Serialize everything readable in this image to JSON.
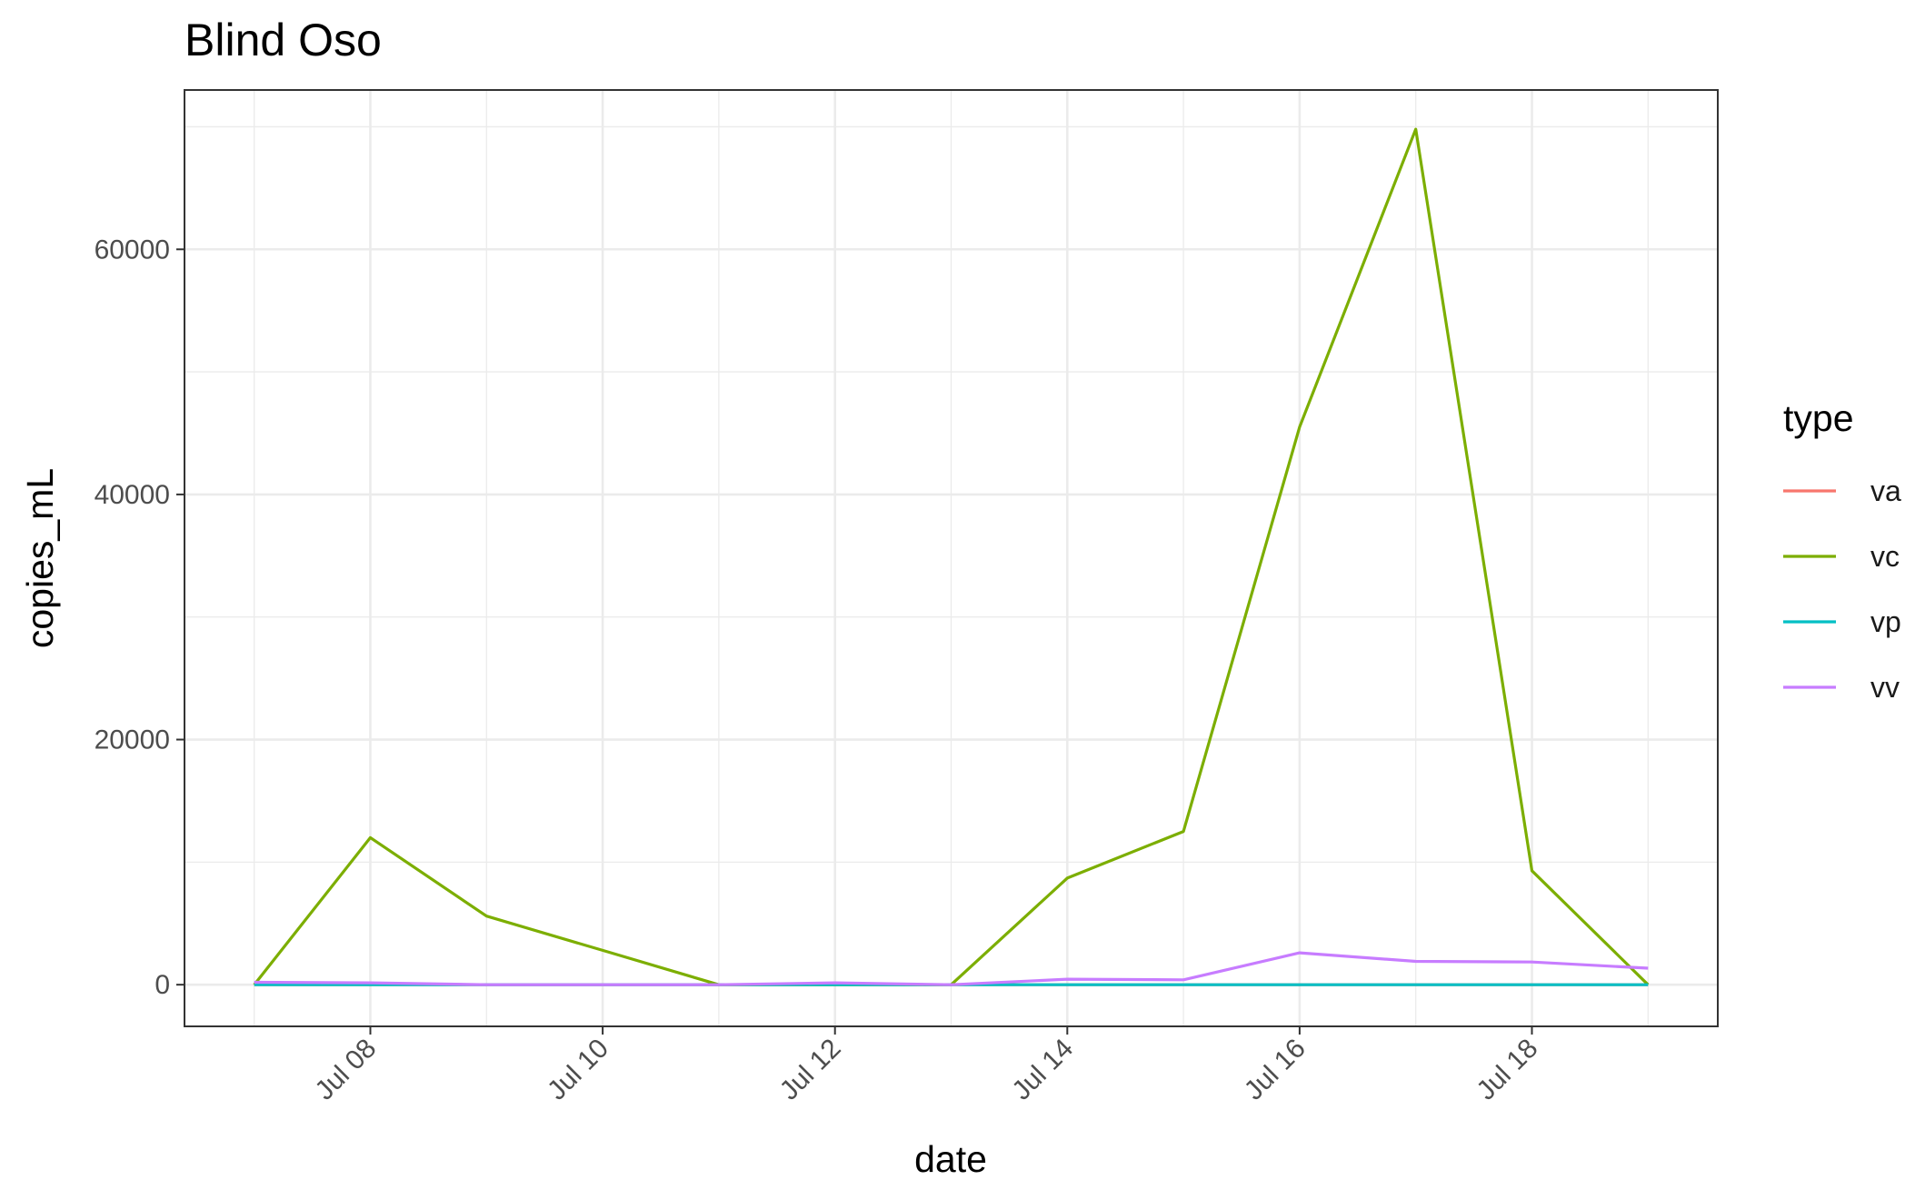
{
  "chart_data": {
    "type": "line",
    "title": "Blind Oso",
    "xlabel": "date",
    "ylabel": "copies_mL",
    "x": [
      "2023-07-07",
      "2023-07-08",
      "2023-07-09",
      "2023-07-10",
      "2023-07-11",
      "2023-07-12",
      "2023-07-13",
      "2023-07-14",
      "2023-07-15",
      "2023-07-16",
      "2023-07-17",
      "2023-07-18",
      "2023-07-19"
    ],
    "x_ticks": [
      "Jul 08",
      "Jul 10",
      "Jul 12",
      "Jul 14",
      "Jul 16",
      "Jul 18"
    ],
    "y_ticks": [
      "0",
      "20000",
      "40000",
      "60000"
    ],
    "ylim": [
      -3400,
      73000
    ],
    "grid": true,
    "legend": {
      "title": "type",
      "position": "right"
    },
    "series": [
      {
        "name": "va",
        "color": "#F8766D",
        "values": [
          0,
          0,
          0,
          0,
          0,
          0,
          0,
          0,
          0,
          0,
          0,
          0,
          0
        ]
      },
      {
        "name": "vc",
        "color": "#7CAE00",
        "values": [
          0,
          12000,
          5600,
          2800,
          0,
          0,
          0,
          8700,
          12500,
          45500,
          69800,
          9300,
          0
        ]
      },
      {
        "name": "vp",
        "color": "#00BFC4",
        "values": [
          0,
          0,
          0,
          0,
          0,
          0,
          0,
          0,
          0,
          0,
          0,
          0,
          0
        ]
      },
      {
        "name": "vv",
        "color": "#C77CFF",
        "values": [
          200,
          150,
          0,
          0,
          0,
          150,
          0,
          450,
          400,
          2600,
          1900,
          1850,
          1350
        ]
      }
    ]
  }
}
